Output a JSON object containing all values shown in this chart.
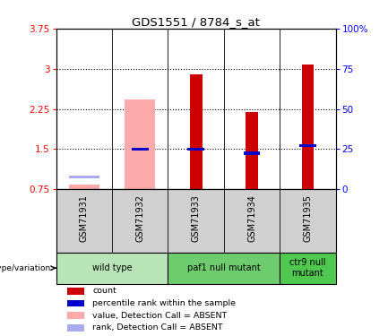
{
  "title": "GDS1551 / 8784_s_at",
  "samples": [
    "GSM71931",
    "GSM71932",
    "GSM71933",
    "GSM71934",
    "GSM71935"
  ],
  "ylim_left": [
    0.75,
    3.75
  ],
  "ylim_right": [
    0,
    100
  ],
  "yticks_left": [
    0.75,
    1.5,
    2.25,
    3.0,
    3.75
  ],
  "ytick_labels_left": [
    "0.75",
    "1.5",
    "2.25",
    "3",
    "3.75"
  ],
  "yticks_right": [
    0,
    25,
    50,
    75,
    100
  ],
  "ytick_labels_right": [
    "0",
    "25",
    "50",
    "75",
    "100%"
  ],
  "bar_bottom": 0.75,
  "count_bars": {
    "GSM71931": null,
    "GSM71932": null,
    "GSM71933": 2.9,
    "GSM71934": 2.2,
    "GSM71935": 3.08
  },
  "absent_value_bars": {
    "GSM71931": 0.83,
    "GSM71932": 2.42,
    "GSM71933": null,
    "GSM71934": null,
    "GSM71935": null
  },
  "percentile_bars": {
    "GSM71931": null,
    "GSM71932": 1.5,
    "GSM71933": 1.5,
    "GSM71934": 1.42,
    "GSM71935": 1.57
  },
  "absent_rank_bars": {
    "GSM71931": 0.98,
    "GSM71932": null,
    "GSM71933": null,
    "GSM71934": null,
    "GSM71935": null
  },
  "genotype_groups": [
    {
      "label": "wild type",
      "samples": [
        "GSM71931",
        "GSM71932"
      ],
      "color": "#b8e4b8"
    },
    {
      "label": "paf1 null mutant",
      "samples": [
        "GSM71933",
        "GSM71934"
      ],
      "color": "#6dcc6d"
    },
    {
      "label": "ctr9 null\nmutant",
      "samples": [
        "GSM71935"
      ],
      "color": "#50c850"
    }
  ],
  "colors": {
    "count": "#cc0000",
    "absent_value": "#ffaaaa",
    "percentile": "#0000cc",
    "absent_rank": "#aaaaee",
    "sample_bg": "#d0d0d0"
  },
  "legend": [
    {
      "color": "#cc0000",
      "label": "count"
    },
    {
      "color": "#0000cc",
      "label": "percentile rank within the sample"
    },
    {
      "color": "#ffaaaa",
      "label": "value, Detection Call = ABSENT"
    },
    {
      "color": "#aaaaee",
      "label": "rank, Detection Call = ABSENT"
    }
  ]
}
